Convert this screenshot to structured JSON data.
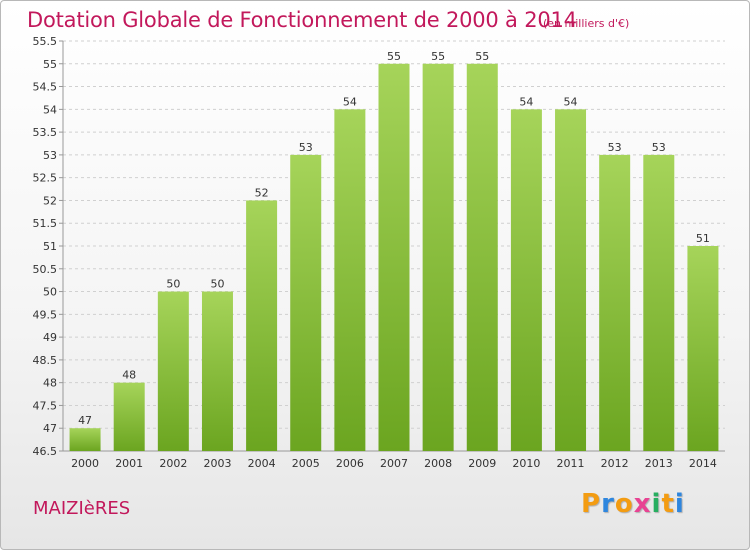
{
  "header": {
    "title": "Dotation Globale de Fonctionnement de 2000 à 2014",
    "unit": "(en milliers d'€)"
  },
  "footer": {
    "commune": "MAIZIèRES",
    "logo": [
      "P",
      "r",
      "o",
      "x",
      "i",
      "t",
      "i"
    ],
    "logo_colors": [
      "#f39c12",
      "#2e86de",
      "#f39c12",
      "#e84393",
      "#27ae60",
      "#f39c12",
      "#2e86de"
    ]
  },
  "colors": {
    "bar_light": "#a6d45a",
    "bar_dark": "#6ba520",
    "grid": "#d0d0d0",
    "axis": "#999999"
  },
  "chart_data": {
    "type": "bar",
    "title": "Dotation Globale de Fonctionnement de 2000 à 2014",
    "subtitle": "(en milliers d'€)",
    "categories": [
      "2000",
      "2001",
      "2002",
      "2003",
      "2004",
      "2005",
      "2006",
      "2007",
      "2008",
      "2009",
      "2010",
      "2011",
      "2012",
      "2013",
      "2014"
    ],
    "values": [
      47,
      48,
      50,
      50,
      52,
      53,
      54,
      55,
      55,
      55,
      54,
      54,
      53,
      53,
      51
    ],
    "data_labels": [
      "47",
      "48",
      "50",
      "50",
      "52",
      "53",
      "54",
      "55",
      "55",
      "55",
      "54",
      "54",
      "53",
      "53",
      "51"
    ],
    "ylim": [
      46.5,
      55.5
    ],
    "yticks": [
      "46.5",
      "47",
      "47.5",
      "48",
      "48.5",
      "49",
      "49.5",
      "50",
      "50.5",
      "51",
      "51.5",
      "52",
      "52.5",
      "53",
      "53.5",
      "54",
      "54.5",
      "55",
      "55.5"
    ],
    "grid": true,
    "legend": "none"
  }
}
